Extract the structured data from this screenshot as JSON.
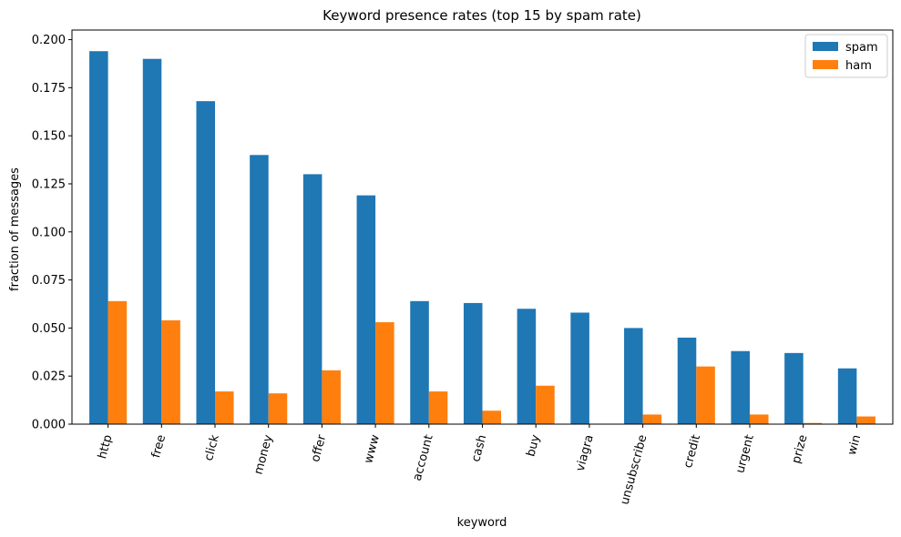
{
  "chart_data": {
    "type": "bar",
    "title": "Keyword presence rates (top 15 by spam rate)",
    "xlabel": "keyword",
    "ylabel": "fraction of messages",
    "ylim": [
      0,
      0.205
    ],
    "yticks": [
      0.0,
      0.025,
      0.05,
      0.075,
      0.1,
      0.125,
      0.15,
      0.175,
      0.2
    ],
    "ytick_labels": [
      "0.000",
      "0.025",
      "0.050",
      "0.075",
      "0.100",
      "0.125",
      "0.150",
      "0.175",
      "0.200"
    ],
    "categories": [
      "http",
      "free",
      "click",
      "money",
      "offer",
      "www",
      "account",
      "cash",
      "buy",
      "viagra",
      "unsubscribe",
      "credit",
      "urgent",
      "prize",
      "win"
    ],
    "series": [
      {
        "name": "spam",
        "color": "#1f77b4",
        "values": [
          0.194,
          0.19,
          0.168,
          0.14,
          0.13,
          0.119,
          0.064,
          0.063,
          0.06,
          0.058,
          0.05,
          0.045,
          0.038,
          0.037,
          0.029
        ]
      },
      {
        "name": "ham",
        "color": "#ff7f0e",
        "values": [
          0.064,
          0.054,
          0.017,
          0.016,
          0.028,
          0.053,
          0.017,
          0.007,
          0.02,
          0.0,
          0.005,
          0.03,
          0.005,
          0.0006,
          0.004
        ]
      }
    ],
    "legend_position": "top-right",
    "grid": false
  }
}
